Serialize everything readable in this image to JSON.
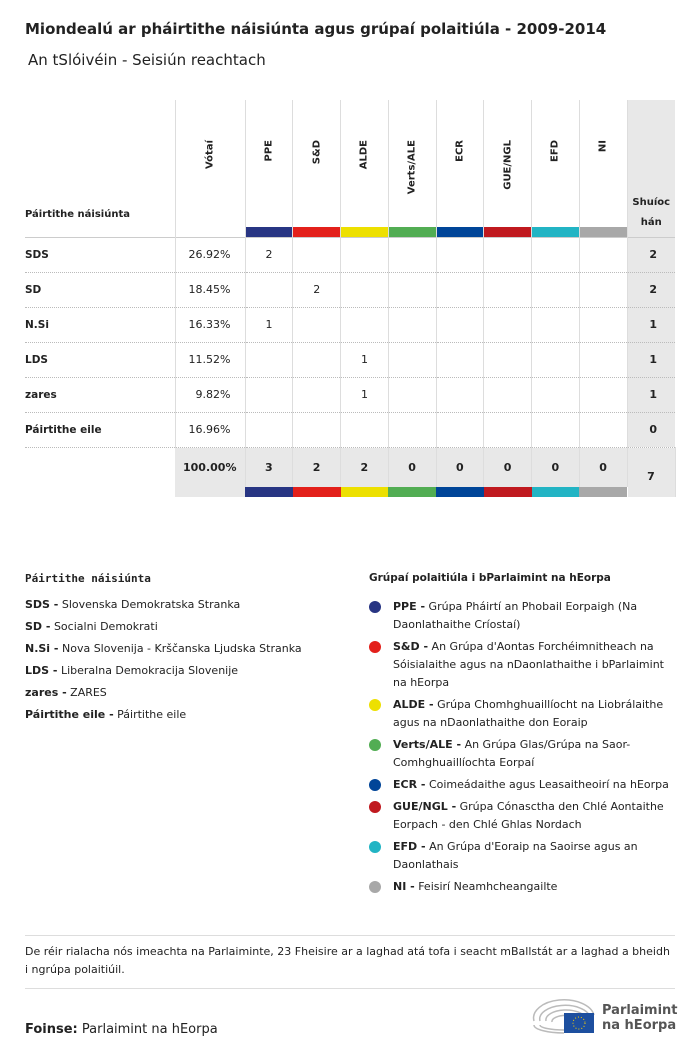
{
  "title": "Miondealú ar pháirtithe náisiúnta agus grúpaí polaitiúla - 2009-2014",
  "subtitle": "An tSlóivéin - Seisiún reachtach",
  "table": {
    "party_header": "Páirtithe náisiúnta",
    "votes_header": "Vótaí",
    "seats_header": "Shuíochán",
    "groups": [
      {
        "label": "PPE",
        "color": "#283583"
      },
      {
        "label": "S&D",
        "color": "#e3201b"
      },
      {
        "label": "ALDE",
        "color": "#ede000"
      },
      {
        "label": "Verts/ALE",
        "color": "#52ad53"
      },
      {
        "label": "ECR",
        "color": "#004598"
      },
      {
        "label": "GUE/NGL",
        "color": "#c0191f"
      },
      {
        "label": "EFD",
        "color": "#22b4c4"
      },
      {
        "label": "NI",
        "color": "#a8a8a8"
      }
    ],
    "rows": [
      {
        "party": "SDS",
        "votes": "26.92%",
        "seats_by_group": [
          "2",
          "",
          "",
          "",
          "",
          "",
          "",
          ""
        ],
        "seats": "2"
      },
      {
        "party": "SD",
        "votes": "18.45%",
        "seats_by_group": [
          "",
          "2",
          "",
          "",
          "",
          "",
          "",
          ""
        ],
        "seats": "2"
      },
      {
        "party": "N.Si",
        "votes": "16.33%",
        "seats_by_group": [
          "1",
          "",
          "",
          "",
          "",
          "",
          "",
          ""
        ],
        "seats": "1"
      },
      {
        "party": "LDS",
        "votes": "11.52%",
        "seats_by_group": [
          "",
          "",
          "1",
          "",
          "",
          "",
          "",
          ""
        ],
        "seats": "1"
      },
      {
        "party": "zares",
        "votes": "9.82%",
        "seats_by_group": [
          "",
          "",
          "1",
          "",
          "",
          "",
          "",
          ""
        ],
        "seats": "1"
      },
      {
        "party": "Páirtithe eile",
        "votes": "16.96%",
        "seats_by_group": [
          "",
          "",
          "",
          "",
          "",
          "",
          "",
          ""
        ],
        "seats": "0"
      }
    ],
    "totals": {
      "votes": "100.00%",
      "groups": [
        "3",
        "2",
        "2",
        "0",
        "0",
        "0",
        "0",
        "0"
      ],
      "seats": "7"
    }
  },
  "legend": {
    "national_title": "Páirtithe náisiúnta",
    "national": [
      {
        "abbr": "SDS -",
        "name": "Slovenska Demokratska Stranka"
      },
      {
        "abbr": "SD -",
        "name": "Socialni Demokrati"
      },
      {
        "abbr": "N.Si -",
        "name": "Nova Slovenija - Krščanska Ljudska Stranka"
      },
      {
        "abbr": "LDS -",
        "name": "Liberalna Demokracija Slovenije"
      },
      {
        "abbr": "zares -",
        "name": "ZARES"
      },
      {
        "abbr": "Páirtithe eile -",
        "name": "Páirtithe eile"
      }
    ],
    "groups_title": "Grúpaí polaitiúla i bParlaimint na hEorpa",
    "groups": [
      {
        "abbr": "PPE -",
        "name": "Grúpa Pháirtí an Phobail Eorpaigh (Na Daonlathaithe Críostaí)"
      },
      {
        "abbr": "S&D -",
        "name": "An Grúpa d'Aontas Forchéimnitheach na Sóisialaithe agus na nDaonlathaithe i bParlaimint na hEorpa"
      },
      {
        "abbr": "ALDE -",
        "name": "Grúpa Chomhghuaillíocht na Liobrálaithe agus na nDaonlathaithe don Eoraip"
      },
      {
        "abbr": "Verts/ALE -",
        "name": "An Grúpa Glas/Grúpa na Saor-Comhghuaillíochta Eorpaí"
      },
      {
        "abbr": "ECR -",
        "name": "Coimeádaithe agus Leasaitheoirí na hEorpa"
      },
      {
        "abbr": "GUE/NGL -",
        "name": "Grúpa Cónasctha den Chlé Aontaithe Eorpach - den Chlé Ghlas Nordach"
      },
      {
        "abbr": "EFD -",
        "name": "An Grúpa d'Eoraip na Saoirse agus an Daonlathais"
      },
      {
        "abbr": "NI -",
        "name": "Feisirí Neamhcheangailte"
      }
    ]
  },
  "note": "De réir rialacha nós imeachta na Parlaiminte, 23 Fheisire ar a laghad atá tofa i seacht mBallstát ar a laghad a bheidh i ngrúpa polaitiúil.",
  "source": {
    "label": "Foinse:",
    "value": "Parlaimint na hEorpa"
  },
  "logo": {
    "line1": "Parlaimint",
    "line2": "na hEorpa"
  }
}
